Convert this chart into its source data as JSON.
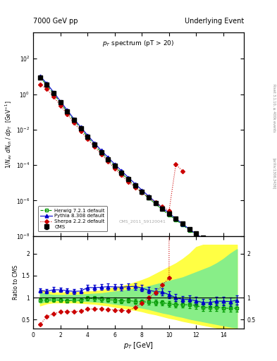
{
  "title_left": "7000 GeV pp",
  "title_right": "Underlying Event",
  "plot_title": "p_{T} spectrum (pT > 20)",
  "ylabel_main": "1/N_{ev} dN_{ch} / dp_{T}  [GeV^{-1}]",
  "ylabel_ratio": "Ratio to CMS",
  "xlabel": "p_{T} [GeV]",
  "watermark": "CMS_2011_S9120041",
  "right_label": "Rivet 3.1.10, ≥ 400k events",
  "arxiv_label": "[arXiv:1306.3436]",
  "CMS_x": [
    0.5,
    1.0,
    1.5,
    2.0,
    2.5,
    3.0,
    3.5,
    4.0,
    4.5,
    5.0,
    5.5,
    6.0,
    6.5,
    7.0,
    7.5,
    8.0,
    8.5,
    9.0,
    9.5,
    10.0,
    10.5,
    11.0,
    11.5,
    12.0,
    12.5,
    13.0,
    13.5,
    14.0,
    14.5,
    15.0
  ],
  "CMS_y": [
    9.0,
    3.5,
    1.1,
    0.34,
    0.108,
    0.035,
    0.012,
    0.0039,
    0.00145,
    0.00055,
    0.00022,
    9e-05,
    3.8e-05,
    1.6e-05,
    7e-06,
    3.2e-06,
    1.5e-06,
    7.2e-07,
    3.5e-07,
    1.8e-07,
    9.5e-08,
    5e-08,
    2.5e-08,
    1.4e-08,
    8e-09,
    4.5e-09,
    2.5e-09,
    1.5e-09,
    9e-10,
    5.5e-10
  ],
  "CMS_yerr": [
    0.4,
    0.15,
    0.05,
    0.015,
    0.005,
    0.0016,
    0.0006,
    0.0002,
    7.5e-05,
    2.9e-05,
    1.2e-05,
    5e-06,
    2.1e-06,
    9e-07,
    4e-07,
    1.9e-07,
    9.5e-08,
    4.8e-08,
    2.4e-08,
    1.3e-08,
    7.2e-09,
    4e-09,
    2.2e-09,
    1.3e-09,
    7.5e-10,
    4.5e-10,
    2.5e-10,
    1.6e-10,
    9.5e-11,
    6e-11
  ],
  "Herwig_x": [
    0.5,
    1.0,
    1.5,
    2.0,
    2.5,
    3.0,
    3.5,
    4.0,
    4.5,
    5.0,
    5.5,
    6.0,
    6.5,
    7.0,
    7.5,
    8.0,
    8.5,
    9.0,
    9.5,
    10.0,
    10.5,
    11.0,
    11.5,
    12.0,
    12.5,
    13.0,
    13.5,
    14.0,
    14.5,
    15.0
  ],
  "Herwig_y": [
    8.5,
    3.3,
    1.05,
    0.32,
    0.1,
    0.033,
    0.0113,
    0.00385,
    0.00142,
    0.00053,
    0.00021,
    8.5e-05,
    3.5e-05,
    1.5e-05,
    6.4e-06,
    2.9e-06,
    1.35e-06,
    6.4e-07,
    3.1e-07,
    1.55e-07,
    8e-08,
    4.2e-08,
    2.1e-08,
    1.15e-08,
    6.2e-09,
    3.5e-09,
    1.95e-09,
    1.15e-09,
    6.8e-10,
    4.2e-10
  ],
  "Pythia_x": [
    0.5,
    1.0,
    1.5,
    2.0,
    2.5,
    3.0,
    3.5,
    4.0,
    4.5,
    5.0,
    5.5,
    6.0,
    6.5,
    7.0,
    7.5,
    8.0,
    8.5,
    9.0,
    9.5,
    10.0,
    10.5,
    11.0,
    11.5,
    12.0,
    12.5,
    13.0,
    13.5,
    14.0,
    14.5,
    15.0
  ],
  "Pythia_y": [
    10.5,
    4.0,
    1.3,
    0.4,
    0.125,
    0.04,
    0.0138,
    0.0048,
    0.00178,
    0.00068,
    0.000275,
    0.000112,
    4.7e-05,
    2e-05,
    8.8e-06,
    3.9e-06,
    1.75e-06,
    8.2e-07,
    3.95e-07,
    1.92e-07,
    9.5e-08,
    4.8e-08,
    2.4e-08,
    1.3e-08,
    7.1e-09,
    4e-09,
    2.3e-09,
    1.38e-09,
    8.2e-10,
    5.2e-10
  ],
  "Sherpa_x": [
    0.5,
    1.0,
    1.5,
    2.0,
    2.5,
    3.0,
    3.5,
    4.0,
    4.5,
    5.0,
    5.5,
    6.0,
    6.5,
    7.0,
    7.5,
    8.0,
    8.5,
    9.0,
    9.5,
    10.0,
    10.5,
    11.0
  ],
  "Sherpa_y": [
    3.5,
    2.0,
    0.7,
    0.23,
    0.074,
    0.024,
    0.0083,
    0.0029,
    0.00108,
    0.00041,
    0.000162,
    6.5e-05,
    2.7e-05,
    1.12e-05,
    5.5e-06,
    2.8e-06,
    1.5e-06,
    8e-07,
    4.5e-07,
    2.6e-07,
    0.00011,
    4.5e-05
  ],
  "CMS_band_lo": [
    0.88,
    0.92,
    0.94,
    0.94,
    0.94,
    0.94,
    0.93,
    0.92,
    0.91,
    0.9,
    0.88,
    0.86,
    0.84,
    0.82,
    0.8,
    0.77,
    0.74,
    0.7,
    0.66,
    0.63,
    0.59,
    0.56,
    0.52,
    0.49,
    0.46,
    0.43,
    0.4,
    0.37,
    0.34,
    0.32
  ],
  "CMS_band_hi": [
    1.12,
    1.08,
    1.06,
    1.06,
    1.06,
    1.06,
    1.07,
    1.08,
    1.09,
    1.1,
    1.12,
    1.14,
    1.16,
    1.18,
    1.2,
    1.23,
    1.26,
    1.3,
    1.34,
    1.38,
    1.42,
    1.46,
    1.52,
    1.58,
    1.64,
    1.7,
    1.78,
    1.88,
    2.0,
    2.1
  ],
  "CMS_band2_lo": [
    0.82,
    0.87,
    0.89,
    0.89,
    0.89,
    0.89,
    0.88,
    0.87,
    0.86,
    0.84,
    0.82,
    0.79,
    0.77,
    0.74,
    0.72,
    0.69,
    0.65,
    0.62,
    0.58,
    0.54,
    0.51,
    0.47,
    0.44,
    0.41,
    0.38,
    0.35,
    0.32,
    0.3,
    0.28,
    0.26
  ],
  "CMS_band2_hi": [
    1.18,
    1.14,
    1.12,
    1.12,
    1.12,
    1.12,
    1.13,
    1.14,
    1.15,
    1.17,
    1.2,
    1.23,
    1.26,
    1.3,
    1.35,
    1.4,
    1.46,
    1.54,
    1.62,
    1.7,
    1.78,
    1.88,
    2.0,
    2.15,
    2.2,
    2.2,
    2.2,
    2.2,
    2.2,
    2.2
  ],
  "xlim": [
    0,
    15.5
  ],
  "ylim_main": [
    1e-08,
    3000.0
  ],
  "ylim_ratio": [
    0.3,
    2.4
  ],
  "color_CMS": "#000000",
  "color_Herwig": "#009900",
  "color_Pythia": "#0000cc",
  "color_Sherpa": "#cc0000",
  "color_band_yellow": "#ffff44",
  "color_band_green": "#88ee88"
}
